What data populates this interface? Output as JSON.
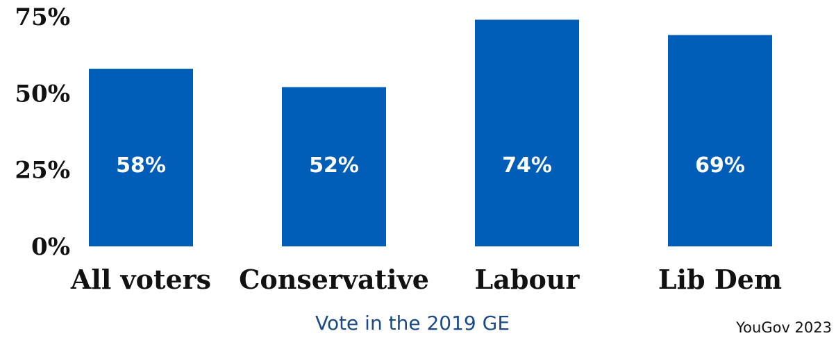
{
  "chart_data": {
    "type": "bar",
    "categories": [
      "All voters",
      "Conservative",
      "Labour",
      "Lib Dem"
    ],
    "values": [
      58,
      52,
      74,
      69
    ],
    "data_labels": [
      "58%",
      "52%",
      "74%",
      "69%"
    ],
    "ylim": [
      0,
      75
    ],
    "y_ticks": [
      0,
      25,
      50,
      75
    ],
    "y_tick_labels": [
      "0%",
      "25%",
      "50%",
      "75%"
    ],
    "xlabel": "Vote in the 2019 GE",
    "ylabel": "",
    "grid": false,
    "bar_color": "#005eb8"
  },
  "source": "YouGov 2023"
}
